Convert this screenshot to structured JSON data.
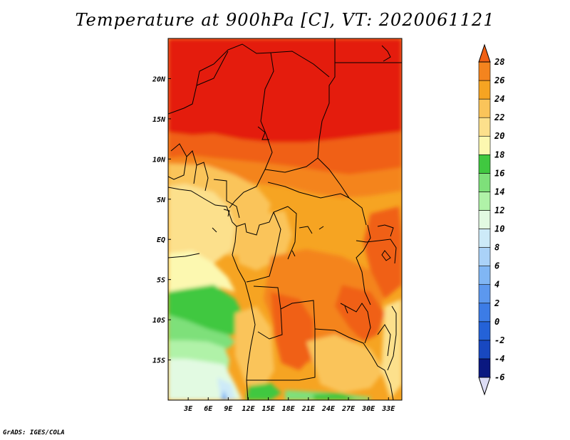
{
  "chart_data": {
    "type": "heatmap",
    "title": "Temperature at 900hPa [C], VT: 2020061121",
    "credit": "GrADS: IGES/COLA",
    "x_axis": {
      "unit": "degrees longitude",
      "range": [
        0,
        35
      ],
      "ticks": [
        {
          "value": 3,
          "label": "3E"
        },
        {
          "value": 6,
          "label": "6E"
        },
        {
          "value": 9,
          "label": "9E"
        },
        {
          "value": 12,
          "label": "12E"
        },
        {
          "value": 15,
          "label": "15E"
        },
        {
          "value": 18,
          "label": "18E"
        },
        {
          "value": 21,
          "label": "21E"
        },
        {
          "value": 24,
          "label": "24E"
        },
        {
          "value": 27,
          "label": "27E"
        },
        {
          "value": 30,
          "label": "30E"
        },
        {
          "value": 33,
          "label": "33E"
        }
      ]
    },
    "y_axis": {
      "unit": "degrees latitude",
      "range": [
        -20,
        25
      ],
      "ticks": [
        {
          "value": 20,
          "label": "20N"
        },
        {
          "value": 15,
          "label": "15N"
        },
        {
          "value": 10,
          "label": "10N"
        },
        {
          "value": 5,
          "label": "5N"
        },
        {
          "value": 0,
          "label": "EQ"
        },
        {
          "value": -5,
          "label": "5S"
        },
        {
          "value": -10,
          "label": "10S"
        },
        {
          "value": -15,
          "label": "15S"
        }
      ]
    },
    "colorbar": {
      "levels": [
        "-6",
        "-4",
        "-2",
        "0",
        "2",
        "4",
        "6",
        "8",
        "10",
        "12",
        "14",
        "16",
        "18",
        "20",
        "22",
        "24",
        "26",
        "28"
      ],
      "bin_colors": [
        "#0a1880",
        "#1848c0",
        "#2462d8",
        "#3c7ce6",
        "#5c98ee",
        "#80b6f4",
        "#aad2f8",
        "#cdeaf8",
        "#e2fae2",
        "#b0f2a8",
        "#7ee07a",
        "#40c840",
        "#fcf8b0",
        "#fce08c",
        "#fac45a",
        "#f6a422",
        "#f4841e",
        "#f06014",
        "#e41c08"
      ],
      "below_color": "#dcdcf4"
    },
    "field_description": "Warm 26-28C over the Sahel/Sahara north of ~12N; 22-26C over central and east Africa; 18-20C over the Gulf of Guinea; 12-16C over the southeast Atlantic; coolest 8-10C off Namibia."
  }
}
